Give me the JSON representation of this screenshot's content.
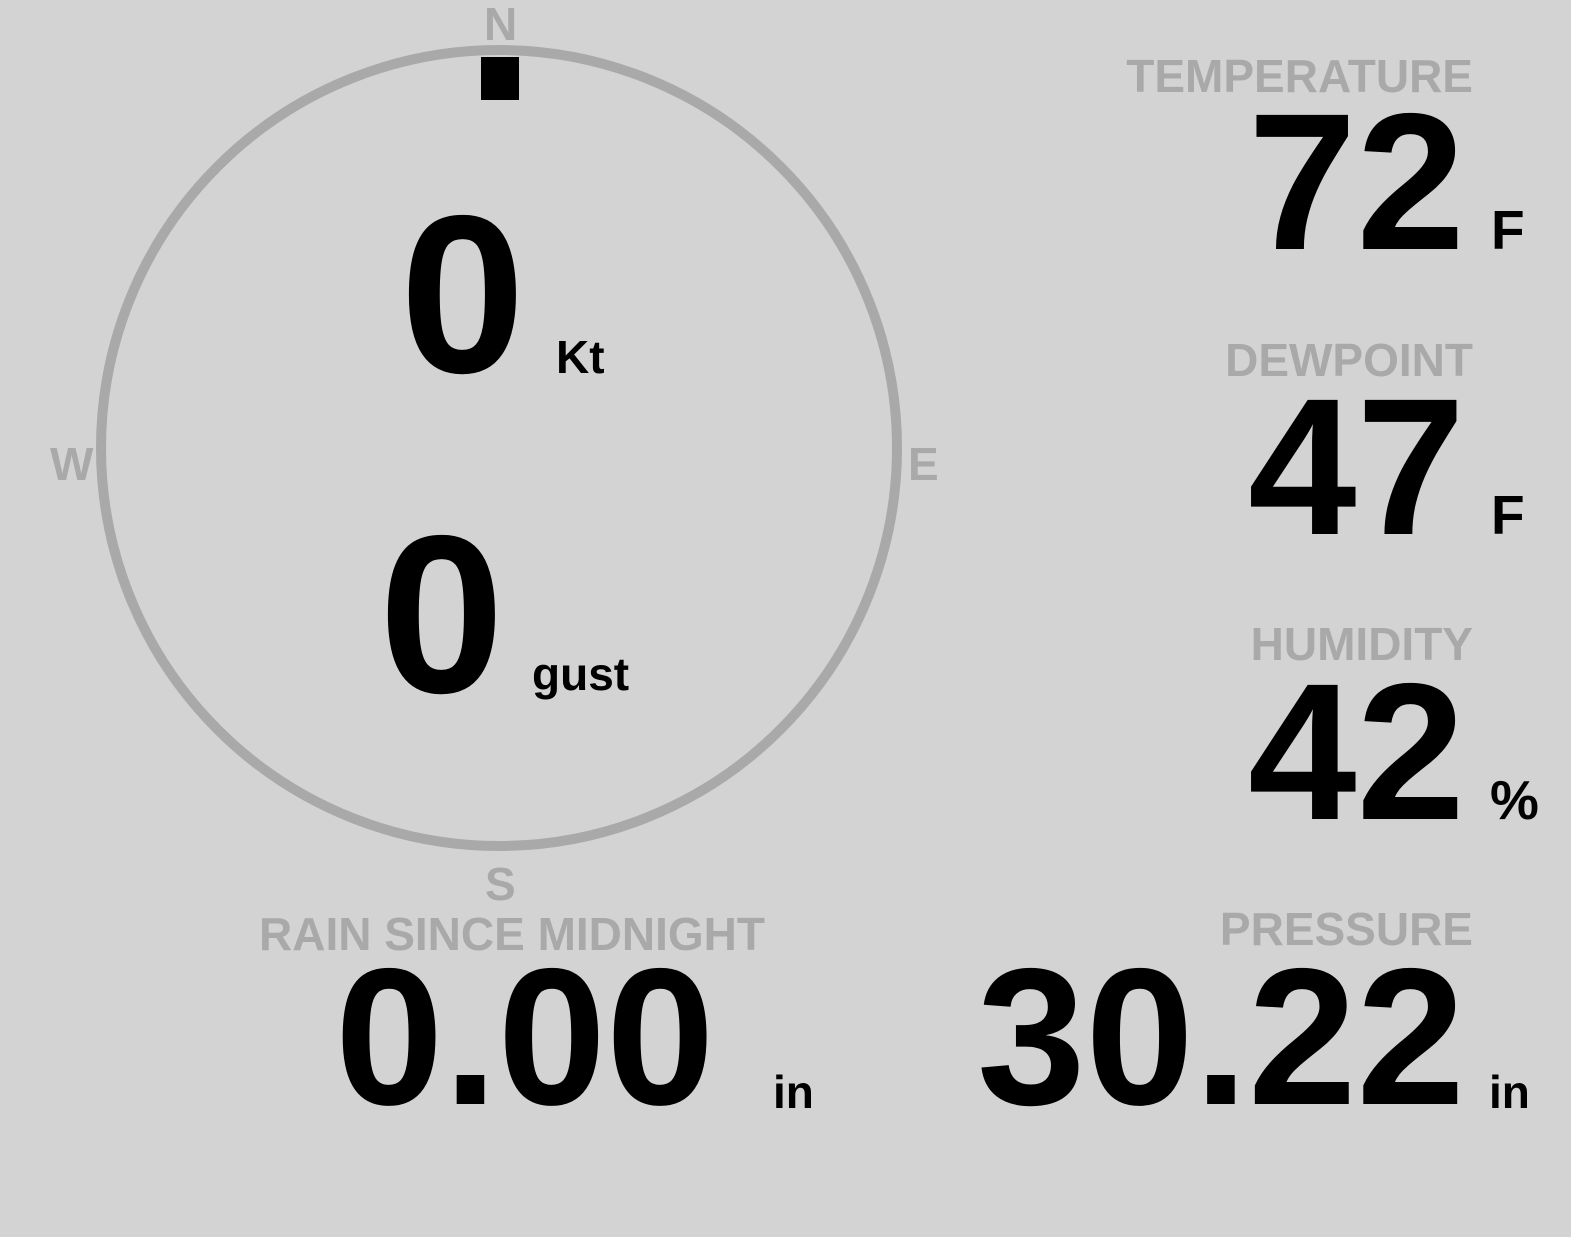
{
  "wind": {
    "compass": {
      "north": "N",
      "east": "E",
      "south": "S",
      "west": "W"
    },
    "direction_deg": 0,
    "speed": "0",
    "speed_unit": "Kt",
    "gust": "0",
    "gust_unit": "gust",
    "colors": {
      "ring": "#a9a9a9",
      "marker": "#000000"
    }
  },
  "temperature": {
    "label": "TEMPERATURE",
    "value": "72",
    "unit": "F"
  },
  "dewpoint": {
    "label": "DEWPOINT",
    "value": "47",
    "unit": "F"
  },
  "humidity": {
    "label": "HUMIDITY",
    "value": "42",
    "unit": "%"
  },
  "pressure": {
    "label": "PRESSURE",
    "value": "30.22",
    "unit": "in"
  },
  "rain": {
    "label": "RAIN SINCE MIDNIGHT",
    "value": "0.00",
    "unit": "in"
  },
  "colors": {
    "background": "#d3d3d3",
    "label": "#a9a9a9",
    "value": "#000000"
  }
}
